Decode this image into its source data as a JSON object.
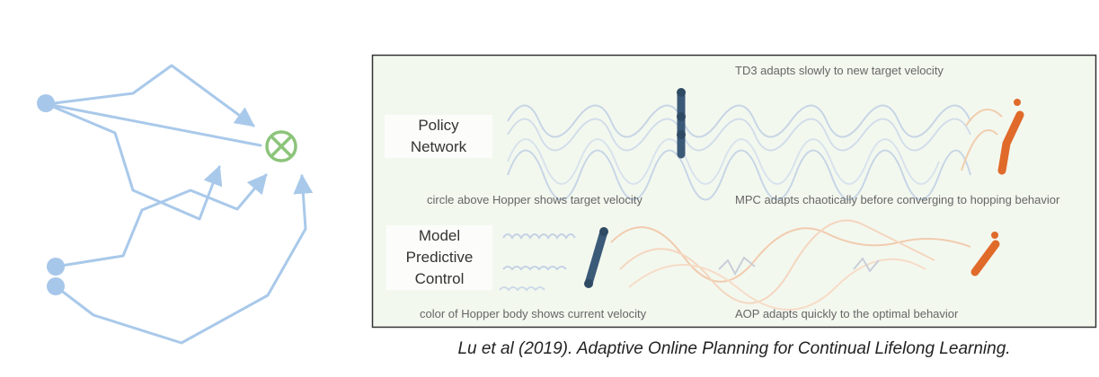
{
  "panel": {
    "top_row": {
      "label_line1": "Policy",
      "label_line2": "Network",
      "note_top": "TD3 adapts slowly to new target velocity",
      "note_left": "circle above Hopper shows target velocity",
      "note_right": "MPC adapts chaotically before converging to hopping behavior"
    },
    "bottom_row": {
      "label_line1": "Model",
      "label_line2": "Predictive",
      "label_line3": "Control",
      "note_left": "color of Hopper body shows current velocity",
      "note_right": "AOP adapts quickly to the optimal behavior"
    }
  },
  "caption": "Lu et al (2019). Adaptive Online Planning for Continual Lifelong Learning.",
  "colors": {
    "path_blue": "#a9c9ea",
    "node_blue": "#a7c7ea",
    "target_green": "#8cc47a",
    "hopper_dark": "#3b5a78",
    "hopper_orange": "#e06a2a",
    "panel_bg": "#f3f8ef"
  },
  "icons": {
    "target": "circle-x-icon"
  }
}
